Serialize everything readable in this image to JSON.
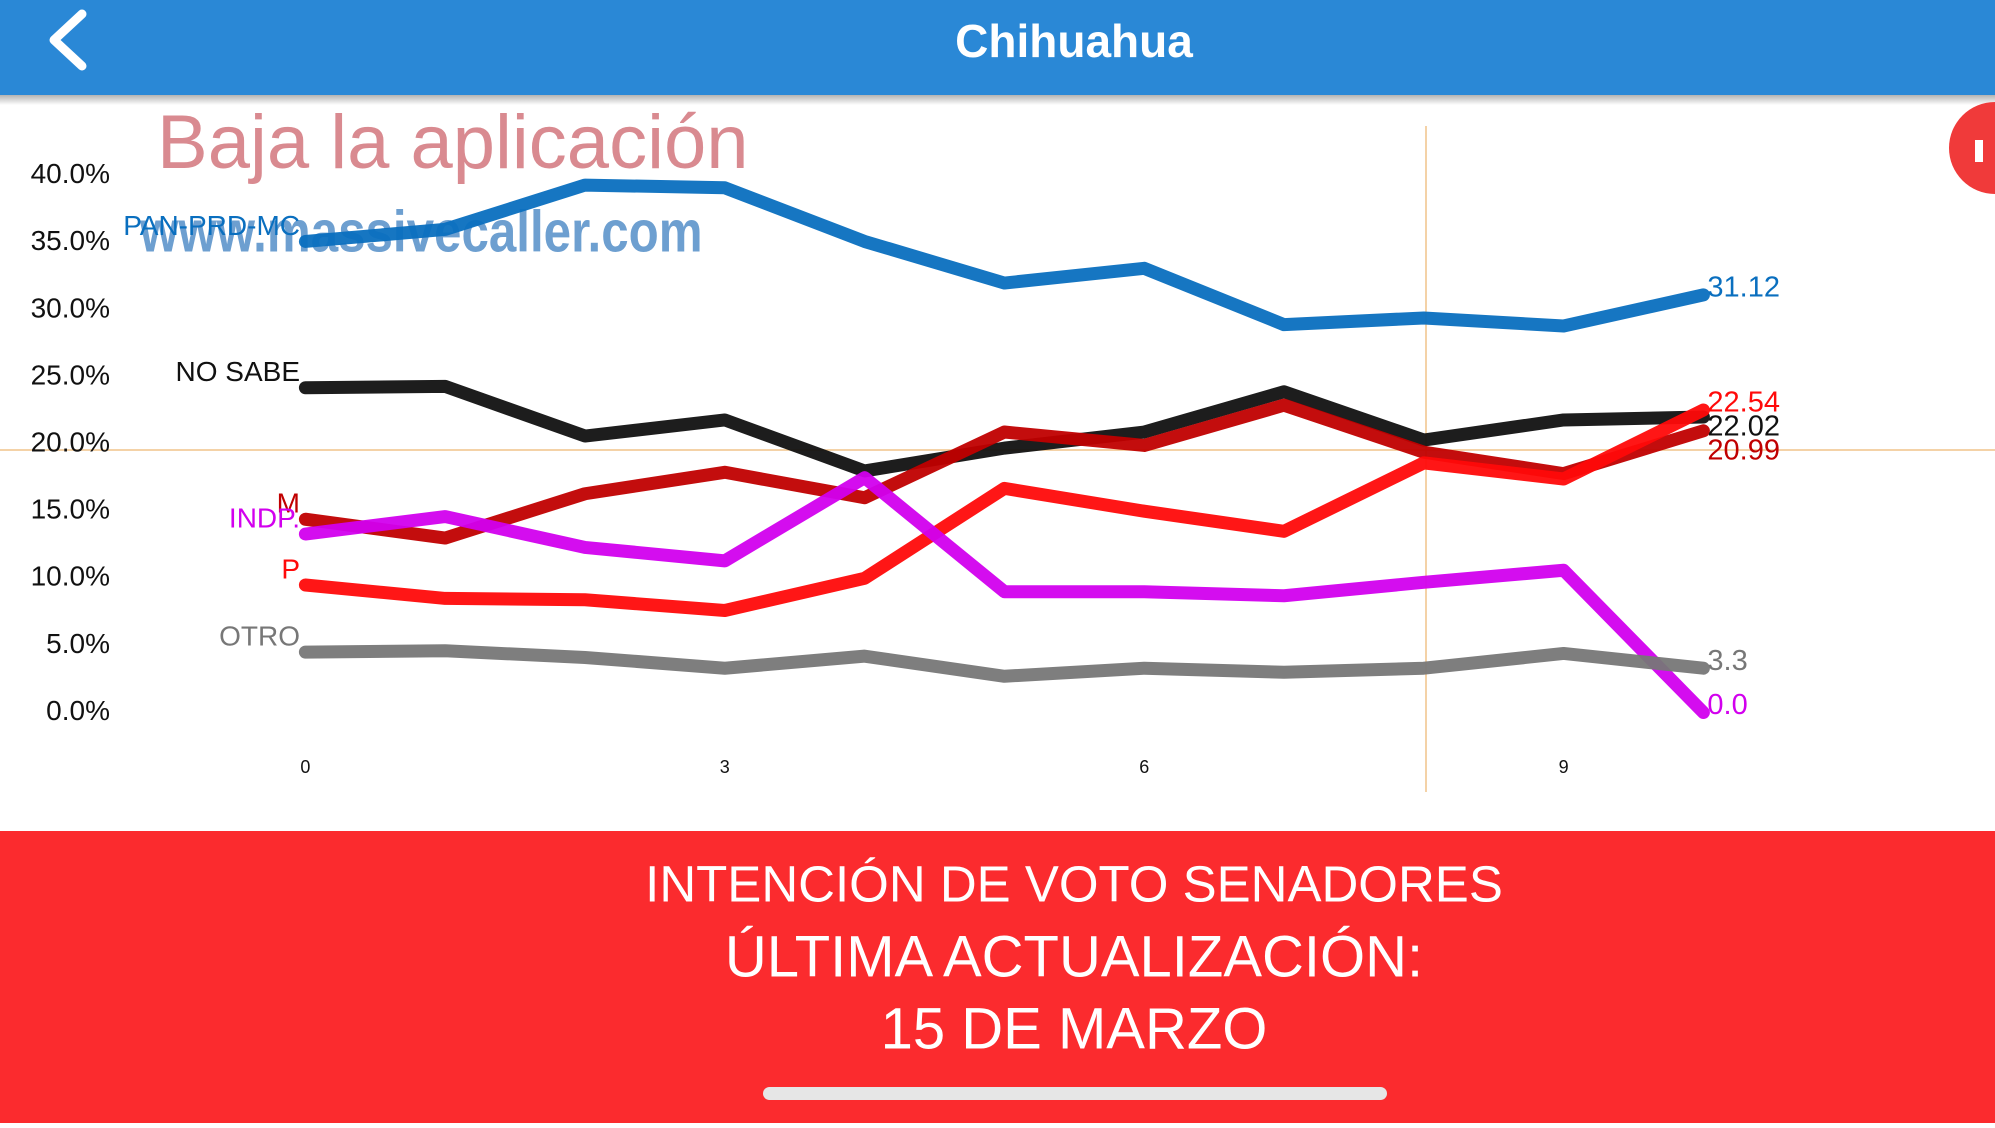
{
  "header": {
    "title": "Chihuahua"
  },
  "watermark": {
    "line1": "Baja la aplicación",
    "line2": "www.massivecaller.com"
  },
  "chart_data": {
    "type": "line",
    "x": [
      0,
      1,
      2,
      3,
      4,
      5,
      6,
      7,
      8,
      9,
      10
    ],
    "xlim": [
      0,
      10
    ],
    "xticks": [
      0,
      3,
      6,
      9
    ],
    "ylim": [
      0,
      40
    ],
    "yticks": [
      {
        "value": 0,
        "label": "0.0%"
      },
      {
        "value": 5,
        "label": "5.0%"
      },
      {
        "value": 10,
        "label": "10.0%"
      },
      {
        "value": 15,
        "label": "15.0%"
      },
      {
        "value": 20,
        "label": "20.0%"
      },
      {
        "value": 25,
        "label": "25.0%"
      },
      {
        "value": 30,
        "label": "30.0%"
      },
      {
        "value": 35,
        "label": "35.0%"
      },
      {
        "value": 40,
        "label": "40.0%"
      }
    ],
    "series": [
      {
        "name": "PAN-PRD-MC",
        "color": "#0a6fbf",
        "values": [
          35.1,
          36.0,
          39.3,
          39.1,
          35.1,
          32.0,
          33.1,
          28.9,
          29.4,
          28.8,
          31.12
        ]
      },
      {
        "name": "NO SABE",
        "color": "#111111",
        "values": [
          24.2,
          24.3,
          20.6,
          21.8,
          18.0,
          19.7,
          20.9,
          23.9,
          20.3,
          21.8,
          22.02
        ]
      },
      {
        "name": "M",
        "color": "#c00000",
        "values": [
          14.4,
          13.0,
          16.3,
          17.9,
          16.0,
          20.9,
          19.9,
          22.9,
          19.4,
          17.8,
          20.99
        ]
      },
      {
        "name": "P",
        "color": "#ff0a0a",
        "values": [
          9.5,
          8.5,
          8.4,
          7.6,
          10.0,
          16.7,
          15.0,
          13.5,
          18.6,
          17.4,
          22.54
        ]
      },
      {
        "name": "INDP.",
        "color": "#d200ee",
        "values": [
          13.3,
          14.6,
          12.3,
          11.3,
          17.5,
          9.0,
          9.0,
          8.7,
          9.7,
          10.6,
          0
        ],
        "value_labels": [
          null,
          null,
          null,
          null,
          null,
          null,
          null,
          null,
          null,
          null,
          "0.0"
        ]
      },
      {
        "name": "OTRO",
        "color": "#777777",
        "values": [
          4.5,
          4.6,
          4.1,
          3.3,
          4.2,
          2.7,
          3.3,
          3.0,
          3.3,
          4.4,
          3.3
        ]
      }
    ]
  },
  "footer": {
    "line1": "INTENCIÓN DE VOTO SENADORES",
    "line2": "ÚLTIMA ACTUALIZACIÓN:",
    "line3": "15 DE MARZO"
  }
}
